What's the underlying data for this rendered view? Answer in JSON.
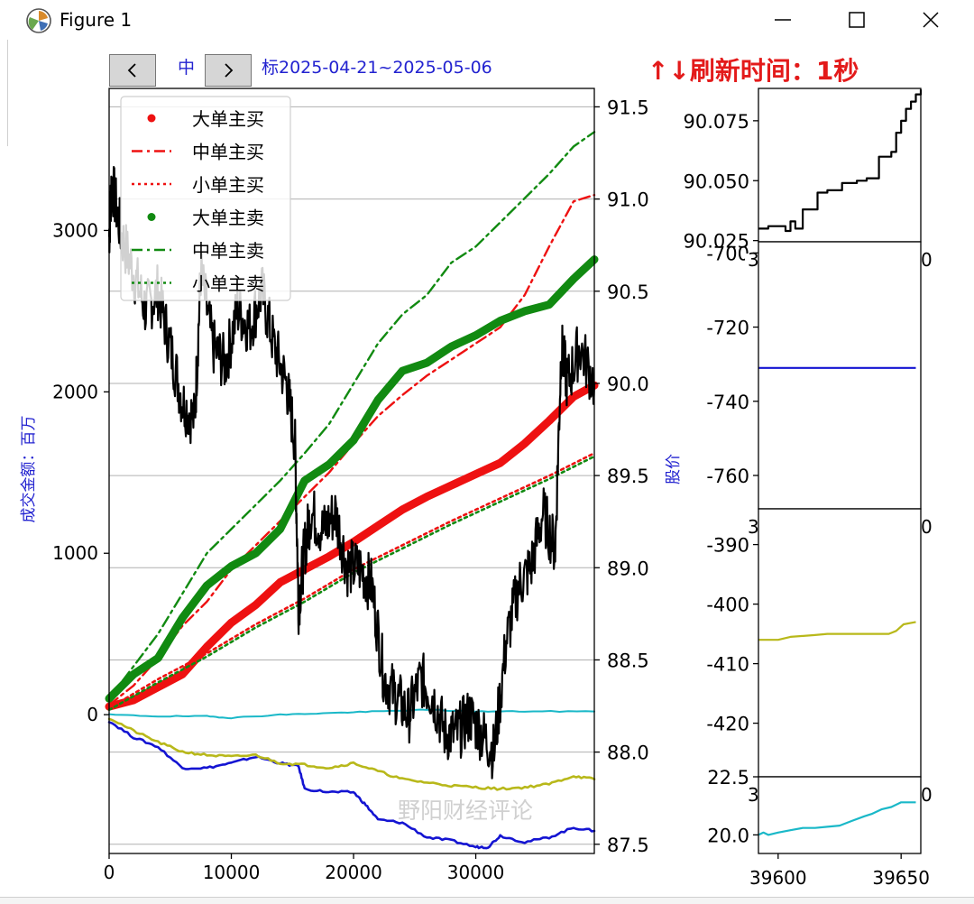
{
  "window": {
    "title": "Figure 1",
    "icons": {
      "app": "matplotlib-icon",
      "minimize": "minimize-icon",
      "maximize": "maximize-icon",
      "close": "close-icon"
    }
  },
  "toolbar": {
    "prev_icon": "chevron-left-icon",
    "next_icon": "chevron-right-icon"
  },
  "header": {
    "date_range": "2025-04-21~2025-05-06",
    "refresh_text": "↑↓刷新时间：1秒"
  },
  "watermark": "野阳财经评论",
  "colors": {
    "red": "#ee1111",
    "green": "#118a11",
    "black": "#000000",
    "blue": "#1414d2",
    "olive": "#b8b81a",
    "cyan": "#1ab8c8",
    "header_blue": "#2323d0"
  },
  "chart_data": [
    {
      "id": "main",
      "type": "line",
      "ylabel_left": "成交金额：百万",
      "ylabel_right": "股价",
      "xlim": [
        0,
        39700
      ],
      "ylim_left": [
        -860,
        3880
      ],
      "ylim_right": [
        87.45,
        91.6
      ],
      "x_ticks": [
        0,
        10000,
        20000,
        30000
      ],
      "y_ticks_left": [
        0,
        1000,
        2000,
        3000
      ],
      "y_ticks_right": [
        87.5,
        88.0,
        88.5,
        89.0,
        89.5,
        90.0,
        90.5,
        91.0,
        91.5
      ],
      "grid": "horizontal",
      "legend": {
        "placement": "upper-left",
        "entries": [
          {
            "label": "大单主买",
            "color": "#ee1111",
            "style": "dot"
          },
          {
            "label": "中单主买",
            "color": "#ee1111",
            "style": "dashdot"
          },
          {
            "label": "小单主买",
            "color": "#ee1111",
            "style": "dotted"
          },
          {
            "label": "大单主卖",
            "color": "#118a11",
            "style": "dot"
          },
          {
            "label": "中单主卖",
            "color": "#118a11",
            "style": "dashdot"
          },
          {
            "label": "小单主卖",
            "color": "#118a11",
            "style": "dotted"
          }
        ]
      },
      "series": [
        {
          "color": "#ee1111",
          "style": "thick",
          "axis": "left",
          "x": [
            0,
            2000,
            4000,
            6000,
            8000,
            10000,
            12000,
            14000,
            16000,
            18000,
            20000,
            22000,
            24000,
            26000,
            28000,
            30000,
            32000,
            34000,
            36000,
            38000,
            39700
          ],
          "y": [
            50,
            90,
            170,
            250,
            420,
            570,
            680,
            820,
            900,
            980,
            1070,
            1170,
            1270,
            1350,
            1420,
            1490,
            1560,
            1680,
            1820,
            1970,
            2040
          ]
        },
        {
          "color": "#ee1111",
          "style": "dashdot",
          "axis": "left",
          "x": [
            0,
            2000,
            4000,
            6000,
            8000,
            10000,
            12000,
            14000,
            16000,
            18000,
            20000,
            22000,
            24000,
            26000,
            28000,
            30000,
            32000,
            34000,
            36000,
            38000,
            39700
          ],
          "y": [
            60,
            180,
            350,
            550,
            700,
            900,
            1050,
            1200,
            1350,
            1500,
            1680,
            1850,
            1980,
            2100,
            2200,
            2300,
            2400,
            2600,
            2900,
            3180,
            3220
          ]
        },
        {
          "color": "#ee1111",
          "style": "dotted",
          "axis": "left",
          "x": [
            0,
            4000,
            8000,
            12000,
            16000,
            20000,
            24000,
            28000,
            32000,
            36000,
            39700
          ],
          "y": [
            40,
            220,
            380,
            560,
            720,
            900,
            1050,
            1200,
            1340,
            1480,
            1620
          ]
        },
        {
          "color": "#118a11",
          "style": "thick",
          "axis": "left",
          "x": [
            0,
            2000,
            4000,
            6000,
            8000,
            10000,
            12000,
            14000,
            16000,
            18000,
            20000,
            22000,
            24000,
            26000,
            28000,
            30000,
            32000,
            34000,
            36000,
            38000,
            39700
          ],
          "y": [
            100,
            250,
            350,
            600,
            800,
            920,
            1000,
            1150,
            1450,
            1550,
            1700,
            1950,
            2130,
            2180,
            2280,
            2350,
            2440,
            2500,
            2540,
            2700,
            2820
          ]
        },
        {
          "color": "#118a11",
          "style": "dashdot",
          "axis": "left",
          "x": [
            0,
            2000,
            4000,
            6000,
            8000,
            10000,
            12000,
            14000,
            16000,
            18000,
            20000,
            22000,
            24000,
            26000,
            28000,
            30000,
            32000,
            34000,
            36000,
            38000,
            39700
          ],
          "y": [
            100,
            300,
            500,
            750,
            1000,
            1150,
            1300,
            1450,
            1620,
            1800,
            2050,
            2300,
            2480,
            2600,
            2800,
            2900,
            3050,
            3200,
            3350,
            3520,
            3610
          ]
        },
        {
          "color": "#118a11",
          "style": "dotted",
          "axis": "left",
          "x": [
            0,
            4000,
            8000,
            12000,
            16000,
            20000,
            24000,
            28000,
            32000,
            36000,
            39700
          ],
          "y": [
            30,
            200,
            360,
            540,
            700,
            880,
            1030,
            1180,
            1320,
            1460,
            1600
          ]
        },
        {
          "color": "#1ab8c8",
          "style": "thin",
          "axis": "left",
          "x": [
            0,
            4000,
            8000,
            10000,
            14000,
            18000,
            22000,
            26000,
            30000,
            34000,
            39700
          ],
          "y": [
            0,
            -10,
            -10,
            -20,
            0,
            10,
            20,
            30,
            20,
            20,
            20
          ]
        },
        {
          "color": "#1414d2",
          "style": "medium",
          "axis": "left",
          "x": [
            0,
            2000,
            4000,
            6000,
            8000,
            10000,
            12000,
            14000,
            15500,
            16000,
            18000,
            20000,
            21000,
            22000,
            24000,
            26000,
            28000,
            30000,
            31000,
            32000,
            34000,
            36000,
            38000,
            39700
          ],
          "y": [
            -40,
            -140,
            -200,
            -330,
            -330,
            -300,
            -260,
            -300,
            -320,
            -460,
            -480,
            -480,
            -560,
            -650,
            -670,
            -760,
            -780,
            -820,
            -820,
            -750,
            -790,
            -760,
            -700,
            -720
          ]
        },
        {
          "color": "#b8b81a",
          "style": "medium",
          "axis": "left",
          "x": [
            0,
            2000,
            4000,
            6000,
            8000,
            10000,
            12000,
            14000,
            16000,
            18000,
            20000,
            22000,
            24000,
            26000,
            28000,
            30000,
            32000,
            34000,
            36000,
            38000,
            39700
          ],
          "y": [
            -20,
            -100,
            -170,
            -230,
            -250,
            -260,
            -250,
            -300,
            -310,
            -330,
            -300,
            -350,
            -400,
            -420,
            -440,
            -450,
            -460,
            -450,
            -430,
            -380,
            -400
          ]
        },
        {
          "color": "#000000",
          "style": "noisy",
          "axis": "right",
          "x": [
            0,
            200,
            1000,
            2000,
            3000,
            4000,
            5000,
            6000,
            7000,
            7500,
            8500,
            9500,
            10500,
            11500,
            12500,
            13500,
            14500,
            15200,
            15500,
            16000,
            16500,
            17500,
            18500,
            19500,
            20500,
            21500,
            22500,
            23500,
            24500,
            25500,
            26500,
            27500,
            28500,
            29500,
            30500,
            31500,
            32500,
            33500,
            34500,
            35500,
            36500,
            37000,
            37500,
            38500,
            39700
          ],
          "y": [
            90.8,
            91.1,
            90.8,
            90.6,
            90.4,
            90.5,
            90.2,
            89.9,
            89.8,
            90.6,
            90.2,
            90.1,
            90.4,
            90.3,
            90.5,
            90.2,
            90.0,
            89.7,
            88.8,
            89.1,
            89.3,
            89.2,
            89.3,
            89.0,
            89.0,
            88.9,
            88.4,
            88.3,
            88.2,
            88.4,
            88.3,
            88.1,
            88.1,
            88.2,
            88.1,
            88.0,
            88.6,
            88.9,
            89.0,
            89.3,
            89.1,
            90.2,
            90.0,
            90.2,
            90.0
          ]
        }
      ],
      "watermark_position": "lower-right"
    },
    {
      "id": "side_price",
      "type": "line",
      "xlim": [
        39592,
        39658
      ],
      "ylim": [
        90.0245,
        90.0885
      ],
      "y_ticks": [
        90.025,
        90.05,
        90.075
      ],
      "series": [
        {
          "color": "#000000",
          "x": [
            39592,
            39596,
            39600,
            39603,
            39605,
            39607,
            39610,
            39613,
            39616,
            39620,
            39623,
            39626,
            39628,
            39632,
            39634,
            39636,
            39638,
            39641,
            39643,
            39646,
            39648,
            39650,
            39652,
            39654,
            39656,
            39658
          ],
          "y": [
            90.03,
            90.031,
            90.031,
            90.029,
            90.033,
            90.03,
            90.038,
            90.038,
            90.045,
            90.046,
            90.046,
            90.049,
            90.049,
            90.05,
            90.05,
            90.051,
            90.051,
            90.06,
            90.06,
            90.062,
            90.07,
            90.075,
            90.08,
            90.083,
            90.086,
            90.088
          ]
        }
      ]
    },
    {
      "id": "side_blue",
      "type": "line",
      "ylim": [
        -769,
        -697
      ],
      "y_ticks": [
        -700,
        -720,
        -740,
        -760
      ],
      "series": [
        {
          "color": "#1414d2",
          "x": [
            39592,
            39656
          ],
          "y": [
            -731,
            -731
          ]
        }
      ]
    },
    {
      "id": "side_olive",
      "type": "line",
      "ylim": [
        -429,
        -384
      ],
      "y_ticks": [
        -390,
        -400,
        -410,
        -420
      ],
      "series": [
        {
          "color": "#b8b81a",
          "x": [
            39592,
            39600,
            39605,
            39615,
            39620,
            39630,
            39640,
            39645,
            39648,
            39651,
            39656
          ],
          "y": [
            -406,
            -406,
            -405.5,
            -405.2,
            -405,
            -405,
            -405,
            -405,
            -404.5,
            -403.4,
            -403
          ]
        }
      ]
    },
    {
      "id": "side_cyan",
      "type": "line",
      "xlim": [
        39592,
        39658
      ],
      "ylim": [
        19.2,
        22.5
      ],
      "y_ticks": [
        20.0,
        22.5
      ],
      "x_ticks": [
        39600,
        39650
      ],
      "series": [
        {
          "color": "#1ab8c8",
          "x": [
            39592,
            39594,
            39596,
            39600,
            39605,
            39610,
            39615,
            39620,
            39625,
            39630,
            39635,
            39638,
            39642,
            39646,
            39650,
            39654,
            39656
          ],
          "y": [
            20.0,
            20.1,
            20.0,
            20.1,
            20.2,
            20.3,
            20.3,
            20.35,
            20.4,
            20.6,
            20.8,
            20.9,
            21.1,
            21.2,
            21.4,
            21.4,
            21.4
          ]
        }
      ]
    }
  ]
}
